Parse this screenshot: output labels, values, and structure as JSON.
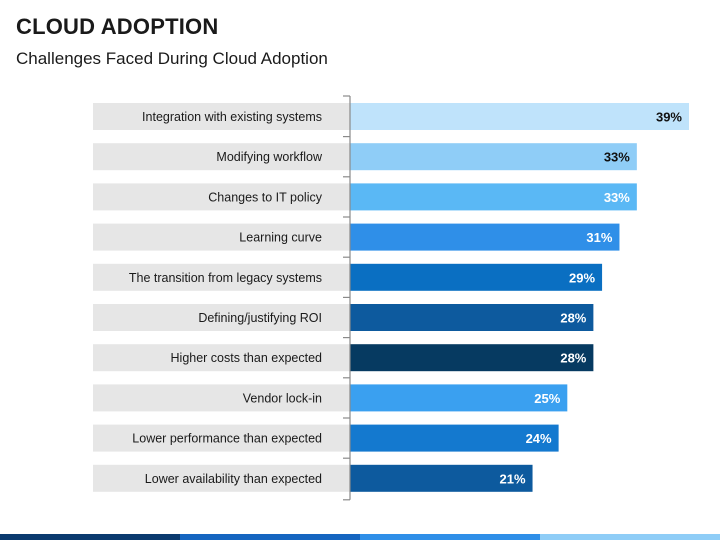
{
  "header": {
    "title": "CLOUD ADOPTION",
    "subtitle": "Challenges Faced During Cloud Adoption"
  },
  "chart_data": {
    "type": "bar",
    "orientation": "horizontal",
    "categories": [
      "Integration with existing systems",
      "Modifying workflow",
      "Changes to IT policy",
      "Learning curve",
      "The transition from legacy systems",
      "Defining/justifying ROI",
      "Higher costs than expected",
      "Vendor lock-in",
      "Lower performance than expected",
      "Lower availability than expected"
    ],
    "values": [
      39,
      33,
      33,
      31,
      29,
      28,
      28,
      25,
      24,
      21
    ],
    "value_labels": [
      "39%",
      "33%",
      "33%",
      "31%",
      "29%",
      "28%",
      "28%",
      "25%",
      "24%",
      "21%"
    ],
    "bar_colors": [
      "#bfe3fb",
      "#8fcdf7",
      "#5ab8f5",
      "#2f8fe8",
      "#0a6fc2",
      "#0d5a9e",
      "#063a61",
      "#3aa0f0",
      "#1479cf",
      "#0d5a9e"
    ],
    "label_colors": [
      "#111111",
      "#111111",
      "#ffffff",
      "#ffffff",
      "#ffffff",
      "#ffffff",
      "#ffffff",
      "#ffffff",
      "#ffffff",
      "#ffffff"
    ],
    "xlim": [
      0,
      39
    ],
    "grid": false,
    "legend": "none"
  },
  "style": {
    "label_band_color": "#e6e6e6",
    "axis_color": "#8a8a8a",
    "strip_colors": [
      "#0b3a6e",
      "#1565c0",
      "#2f8fe8",
      "#8fcdf7"
    ]
  }
}
